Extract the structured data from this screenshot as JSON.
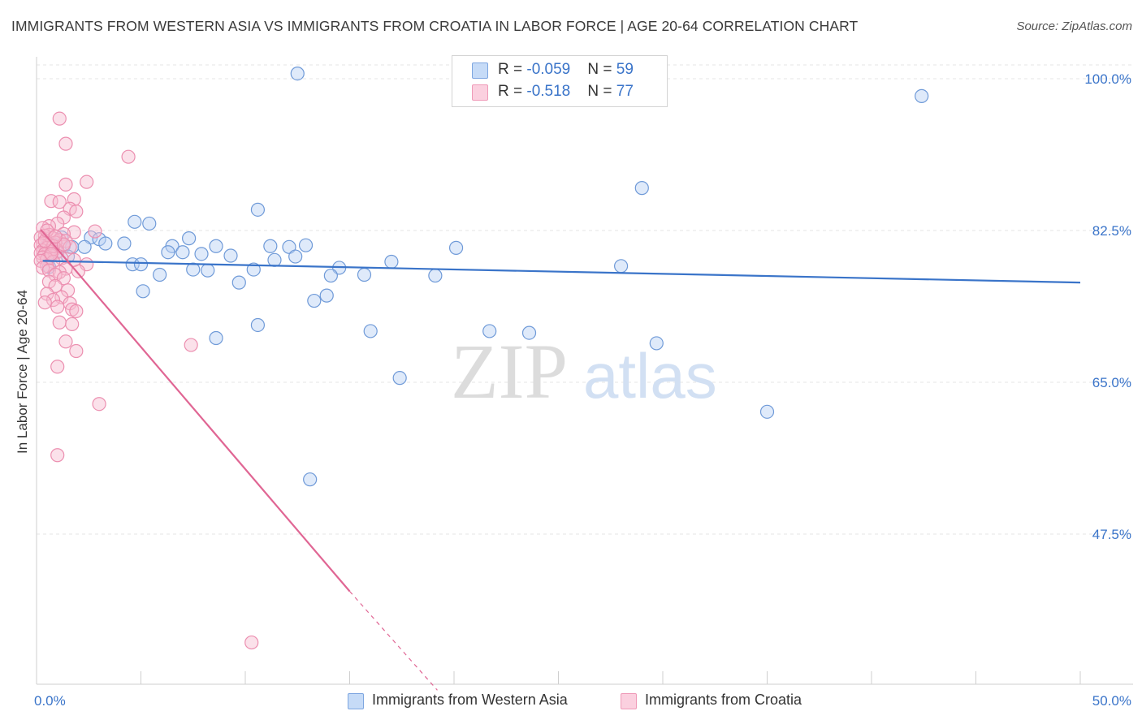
{
  "chart_data": {
    "type": "scatter",
    "title": "IMMIGRANTS FROM WESTERN ASIA VS IMMIGRANTS FROM CROATIA IN LABOR FORCE | AGE 20-64 CORRELATION CHART",
    "source": "Source: ZipAtlas.com",
    "ylabel": "In Labor Force | Age 20-64",
    "xlim": [
      0,
      50
    ],
    "ylim": [
      30,
      102
    ],
    "x_tick_labels": [
      "0.0%",
      "50.0%"
    ],
    "y_ticks": [
      47.5,
      65.0,
      82.5,
      100.0
    ],
    "y_tick_labels": [
      "47.5%",
      "65.0%",
      "82.5%",
      "100.0%"
    ],
    "watermark": {
      "zip": "ZIP",
      "atlas": "atlas"
    },
    "colors": {
      "blue": "#3a74c9",
      "blue_fill": "#b8d0f3",
      "pink": "#e06694",
      "pink_fill": "#f7bcd1",
      "grid": "#e6e6e6"
    },
    "legend": [
      {
        "r_label": "R = ",
        "r_value": "-0.059",
        "n_label": "N = ",
        "n_value": "59"
      },
      {
        "r_label": "R = ",
        "r_value": " -0.518",
        "n_label": "N = ",
        "n_value": "77"
      }
    ],
    "series": [
      {
        "name": "Immigrants from Western Asia",
        "color": "#3a74c9",
        "trend": {
          "x1": 0.3,
          "y1": 79.0,
          "x2": 50.0,
          "y2": 76.5
        },
        "points": [
          [
            12.5,
            100.6
          ],
          [
            20.3,
            100.6
          ],
          [
            42.4,
            98.0
          ],
          [
            29.0,
            87.4
          ],
          [
            10.6,
            84.9
          ],
          [
            4.7,
            83.5
          ],
          [
            5.4,
            83.3
          ],
          [
            1.2,
            81.7
          ],
          [
            2.6,
            81.7
          ],
          [
            3.0,
            81.5
          ],
          [
            7.3,
            81.6
          ],
          [
            0.8,
            80.9
          ],
          [
            1.3,
            80.7
          ],
          [
            1.7,
            80.6
          ],
          [
            2.3,
            80.6
          ],
          [
            3.3,
            81.0
          ],
          [
            4.2,
            81.0
          ],
          [
            6.5,
            80.7
          ],
          [
            8.6,
            80.7
          ],
          [
            11.2,
            80.7
          ],
          [
            12.1,
            80.6
          ],
          [
            12.9,
            80.8
          ],
          [
            0.6,
            79.9
          ],
          [
            6.3,
            80.0
          ],
          [
            7.0,
            80.0
          ],
          [
            7.9,
            79.8
          ],
          [
            9.3,
            79.6
          ],
          [
            11.4,
            79.1
          ],
          [
            12.4,
            79.5
          ],
          [
            0.6,
            78.3
          ],
          [
            4.6,
            78.6
          ],
          [
            5.0,
            78.6
          ],
          [
            7.5,
            78.0
          ],
          [
            8.2,
            77.9
          ],
          [
            10.4,
            78.0
          ],
          [
            14.5,
            78.2
          ],
          [
            17.0,
            78.9
          ],
          [
            28.0,
            78.4
          ],
          [
            5.9,
            77.4
          ],
          [
            9.7,
            76.5
          ],
          [
            14.1,
            77.3
          ],
          [
            15.7,
            77.4
          ],
          [
            19.1,
            77.3
          ],
          [
            5.1,
            75.5
          ],
          [
            13.9,
            75.0
          ],
          [
            13.3,
            74.4
          ],
          [
            10.6,
            71.6
          ],
          [
            16.0,
            70.9
          ],
          [
            21.7,
            70.9
          ],
          [
            23.6,
            70.7
          ],
          [
            29.7,
            69.5
          ],
          [
            8.6,
            70.1
          ],
          [
            17.4,
            65.5
          ],
          [
            35.0,
            61.6
          ],
          [
            13.1,
            53.8
          ],
          [
            20.1,
            80.5
          ],
          [
            1.0,
            80.1
          ],
          [
            0.5,
            80.8
          ],
          [
            1.5,
            79.5
          ]
        ]
      },
      {
        "name": "Immigrants from Croatia",
        "color": "#e06694",
        "trend": {
          "x1": 0.2,
          "y1": 82.6,
          "x2": 15.0,
          "y2": 40.9,
          "dash_to_x": 19.2,
          "dash_to_y": 29.5
        },
        "points": [
          [
            1.1,
            95.4
          ],
          [
            1.4,
            92.5
          ],
          [
            4.4,
            91.0
          ],
          [
            2.4,
            88.1
          ],
          [
            1.4,
            87.8
          ],
          [
            0.7,
            85.9
          ],
          [
            1.1,
            85.8
          ],
          [
            1.8,
            86.1
          ],
          [
            1.6,
            85.0
          ],
          [
            1.9,
            84.7
          ],
          [
            1.3,
            84.0
          ],
          [
            1.0,
            83.3
          ],
          [
            0.6,
            83.0
          ],
          [
            0.3,
            82.8
          ],
          [
            2.8,
            82.4
          ],
          [
            1.8,
            82.3
          ],
          [
            1.3,
            82.1
          ],
          [
            0.6,
            82.0
          ],
          [
            0.4,
            81.9
          ],
          [
            0.2,
            81.7
          ],
          [
            0.8,
            81.6
          ],
          [
            1.1,
            81.4
          ],
          [
            1.4,
            81.3
          ],
          [
            0.9,
            81.1
          ],
          [
            0.3,
            81.0
          ],
          [
            0.6,
            80.9
          ],
          [
            0.2,
            80.8
          ],
          [
            1.6,
            80.6
          ],
          [
            0.5,
            80.5
          ],
          [
            0.9,
            80.4
          ],
          [
            0.3,
            80.2
          ],
          [
            0.6,
            80.1
          ],
          [
            1.0,
            80.0
          ],
          [
            0.2,
            79.9
          ],
          [
            0.4,
            79.8
          ],
          [
            0.7,
            79.6
          ],
          [
            0.3,
            79.4
          ],
          [
            1.2,
            79.3
          ],
          [
            0.5,
            79.2
          ],
          [
            0.2,
            79.0
          ],
          [
            0.8,
            78.9
          ],
          [
            2.4,
            78.6
          ],
          [
            0.5,
            78.4
          ],
          [
            0.3,
            78.2
          ],
          [
            1.4,
            78.1
          ],
          [
            0.6,
            77.9
          ],
          [
            1.1,
            77.7
          ],
          [
            0.9,
            77.4
          ],
          [
            1.3,
            77.0
          ],
          [
            0.6,
            76.6
          ],
          [
            0.9,
            76.1
          ],
          [
            1.5,
            75.6
          ],
          [
            0.5,
            75.2
          ],
          [
            1.2,
            74.8
          ],
          [
            0.8,
            74.5
          ],
          [
            1.6,
            74.1
          ],
          [
            1.0,
            73.7
          ],
          [
            1.7,
            73.4
          ],
          [
            1.9,
            73.2
          ],
          [
            0.4,
            74.2
          ],
          [
            1.1,
            71.9
          ],
          [
            1.7,
            71.7
          ],
          [
            1.4,
            69.7
          ],
          [
            7.4,
            69.3
          ],
          [
            1.9,
            68.6
          ],
          [
            1.0,
            66.8
          ],
          [
            3.0,
            62.5
          ],
          [
            1.0,
            56.6
          ],
          [
            10.3,
            35.0
          ],
          [
            0.8,
            80.7
          ],
          [
            0.4,
            81.3
          ],
          [
            0.5,
            82.5
          ],
          [
            2.0,
            77.8
          ],
          [
            1.8,
            79.1
          ],
          [
            0.7,
            79.8
          ],
          [
            1.3,
            80.9
          ],
          [
            0.9,
            81.8
          ]
        ]
      }
    ]
  }
}
